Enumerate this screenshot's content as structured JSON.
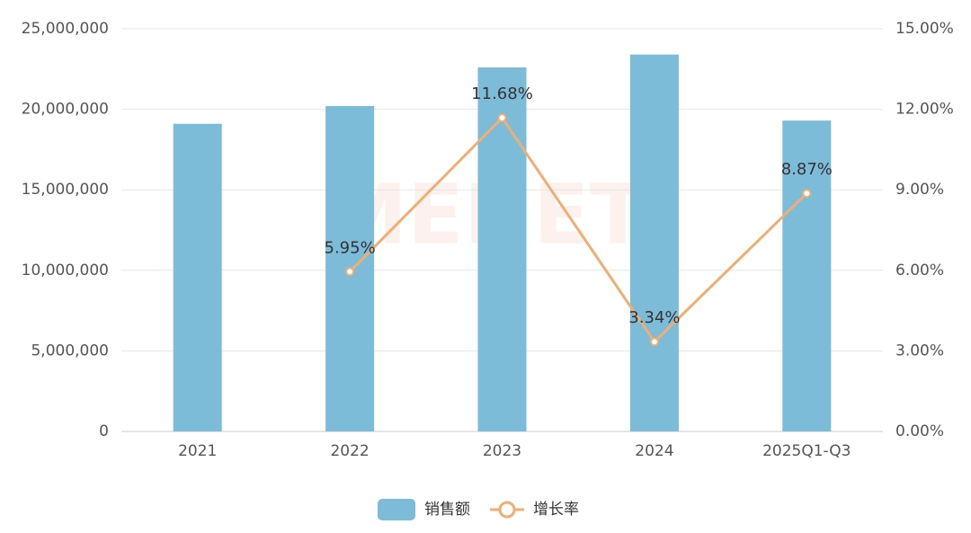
{
  "chart_data": {
    "type": "bar",
    "watermark": "MENET",
    "categories": [
      "2021",
      "2022",
      "2023",
      "2024",
      "2025Q1-Q3"
    ],
    "series": [
      {
        "name": "销售额",
        "type": "bar",
        "color": "#7dbcd9",
        "values": [
          19100000,
          20200000,
          22600000,
          23400000,
          19300000
        ]
      },
      {
        "name": "增长率",
        "type": "line",
        "axis": "y2",
        "color": "#efae74",
        "values": [
          null,
          5.95,
          11.68,
          3.34,
          8.87
        ],
        "value_labels": [
          null,
          "5.95%",
          "11.68%",
          "3.34%",
          "8.87%"
        ]
      }
    ],
    "ylim": [
      0,
      25000000
    ],
    "yticks": [
      0,
      {
        "value": 5000000,
        "label": "5,000,000"
      },
      {
        "value": 10000000,
        "label": "10,000,000"
      },
      {
        "value": 15000000,
        "label": "15,000,000"
      },
      {
        "value": 20000000,
        "label": "20,000,000"
      },
      {
        "value": 25000000,
        "label": "25,000,000"
      }
    ],
    "y2lim": [
      0,
      15
    ],
    "y2ticks": [
      {
        "value": 0,
        "label": "0.00%"
      },
      {
        "value": 3,
        "label": "3.00%"
      },
      {
        "value": 6,
        "label": "6.00%"
      },
      {
        "value": 9,
        "label": "9.00%"
      },
      {
        "value": 12,
        "label": "12.00%"
      },
      {
        "value": 15,
        "label": "15.00%"
      }
    ],
    "grid": true,
    "legend": "bottom"
  }
}
